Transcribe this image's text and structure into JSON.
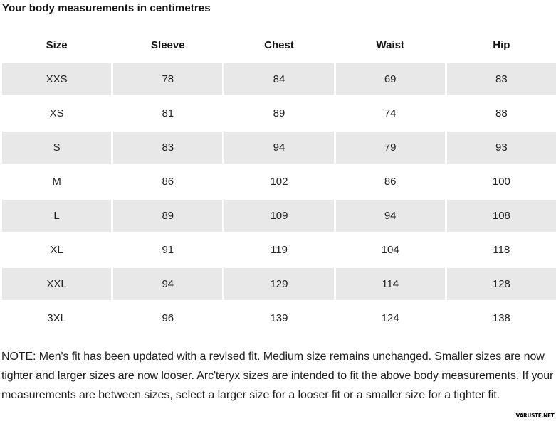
{
  "title": "Your body measurements in centimetres",
  "table": {
    "headers": [
      "Size",
      "Sleeve",
      "Chest",
      "Waist",
      "Hip"
    ],
    "rows": [
      {
        "size": "XXS",
        "values": [
          78,
          84,
          69,
          83
        ]
      },
      {
        "size": "XS",
        "values": [
          81,
          89,
          74,
          88
        ]
      },
      {
        "size": "S",
        "values": [
          83,
          94,
          79,
          93
        ]
      },
      {
        "size": "M",
        "values": [
          86,
          102,
          86,
          100
        ]
      },
      {
        "size": "L",
        "values": [
          89,
          109,
          94,
          108
        ]
      },
      {
        "size": "XL",
        "values": [
          91,
          119,
          104,
          118
        ]
      },
      {
        "size": "XXL",
        "values": [
          94,
          129,
          114,
          128
        ]
      },
      {
        "size": "3XL",
        "values": [
          96,
          139,
          124,
          138
        ]
      }
    ]
  },
  "note": "NOTE: Men's fit has been updated with a revised fit. Medium size remains unchanged. Smaller sizes are now tighter and larger sizes are now looser. Arc'teryx sizes are intended to fit the above body measurements. If your measurements are between sizes, select a larger size for a looser fit or a smaller size for a tighter fit.",
  "watermark": "VARUSTE.NET",
  "colors": {
    "background": "#ffffff",
    "stripe": "#e8e8e8",
    "text": "#1e1e1e"
  },
  "chart_data": {
    "type": "table",
    "title": "Your body measurements in centimetres",
    "columns": [
      "Size",
      "Sleeve",
      "Chest",
      "Waist",
      "Hip"
    ],
    "categories": [
      "XXS",
      "XS",
      "S",
      "M",
      "L",
      "XL",
      "XXL",
      "3XL"
    ],
    "series": [
      {
        "name": "Sleeve",
        "values": [
          78,
          81,
          83,
          86,
          89,
          91,
          94,
          96
        ]
      },
      {
        "name": "Chest",
        "values": [
          84,
          89,
          94,
          102,
          109,
          119,
          129,
          139
        ]
      },
      {
        "name": "Waist",
        "values": [
          69,
          74,
          79,
          86,
          94,
          104,
          114,
          124
        ]
      },
      {
        "name": "Hip",
        "values": [
          83,
          88,
          93,
          100,
          108,
          118,
          128,
          138
        ]
      }
    ],
    "unit": "cm",
    "layout": "striped-rows"
  }
}
